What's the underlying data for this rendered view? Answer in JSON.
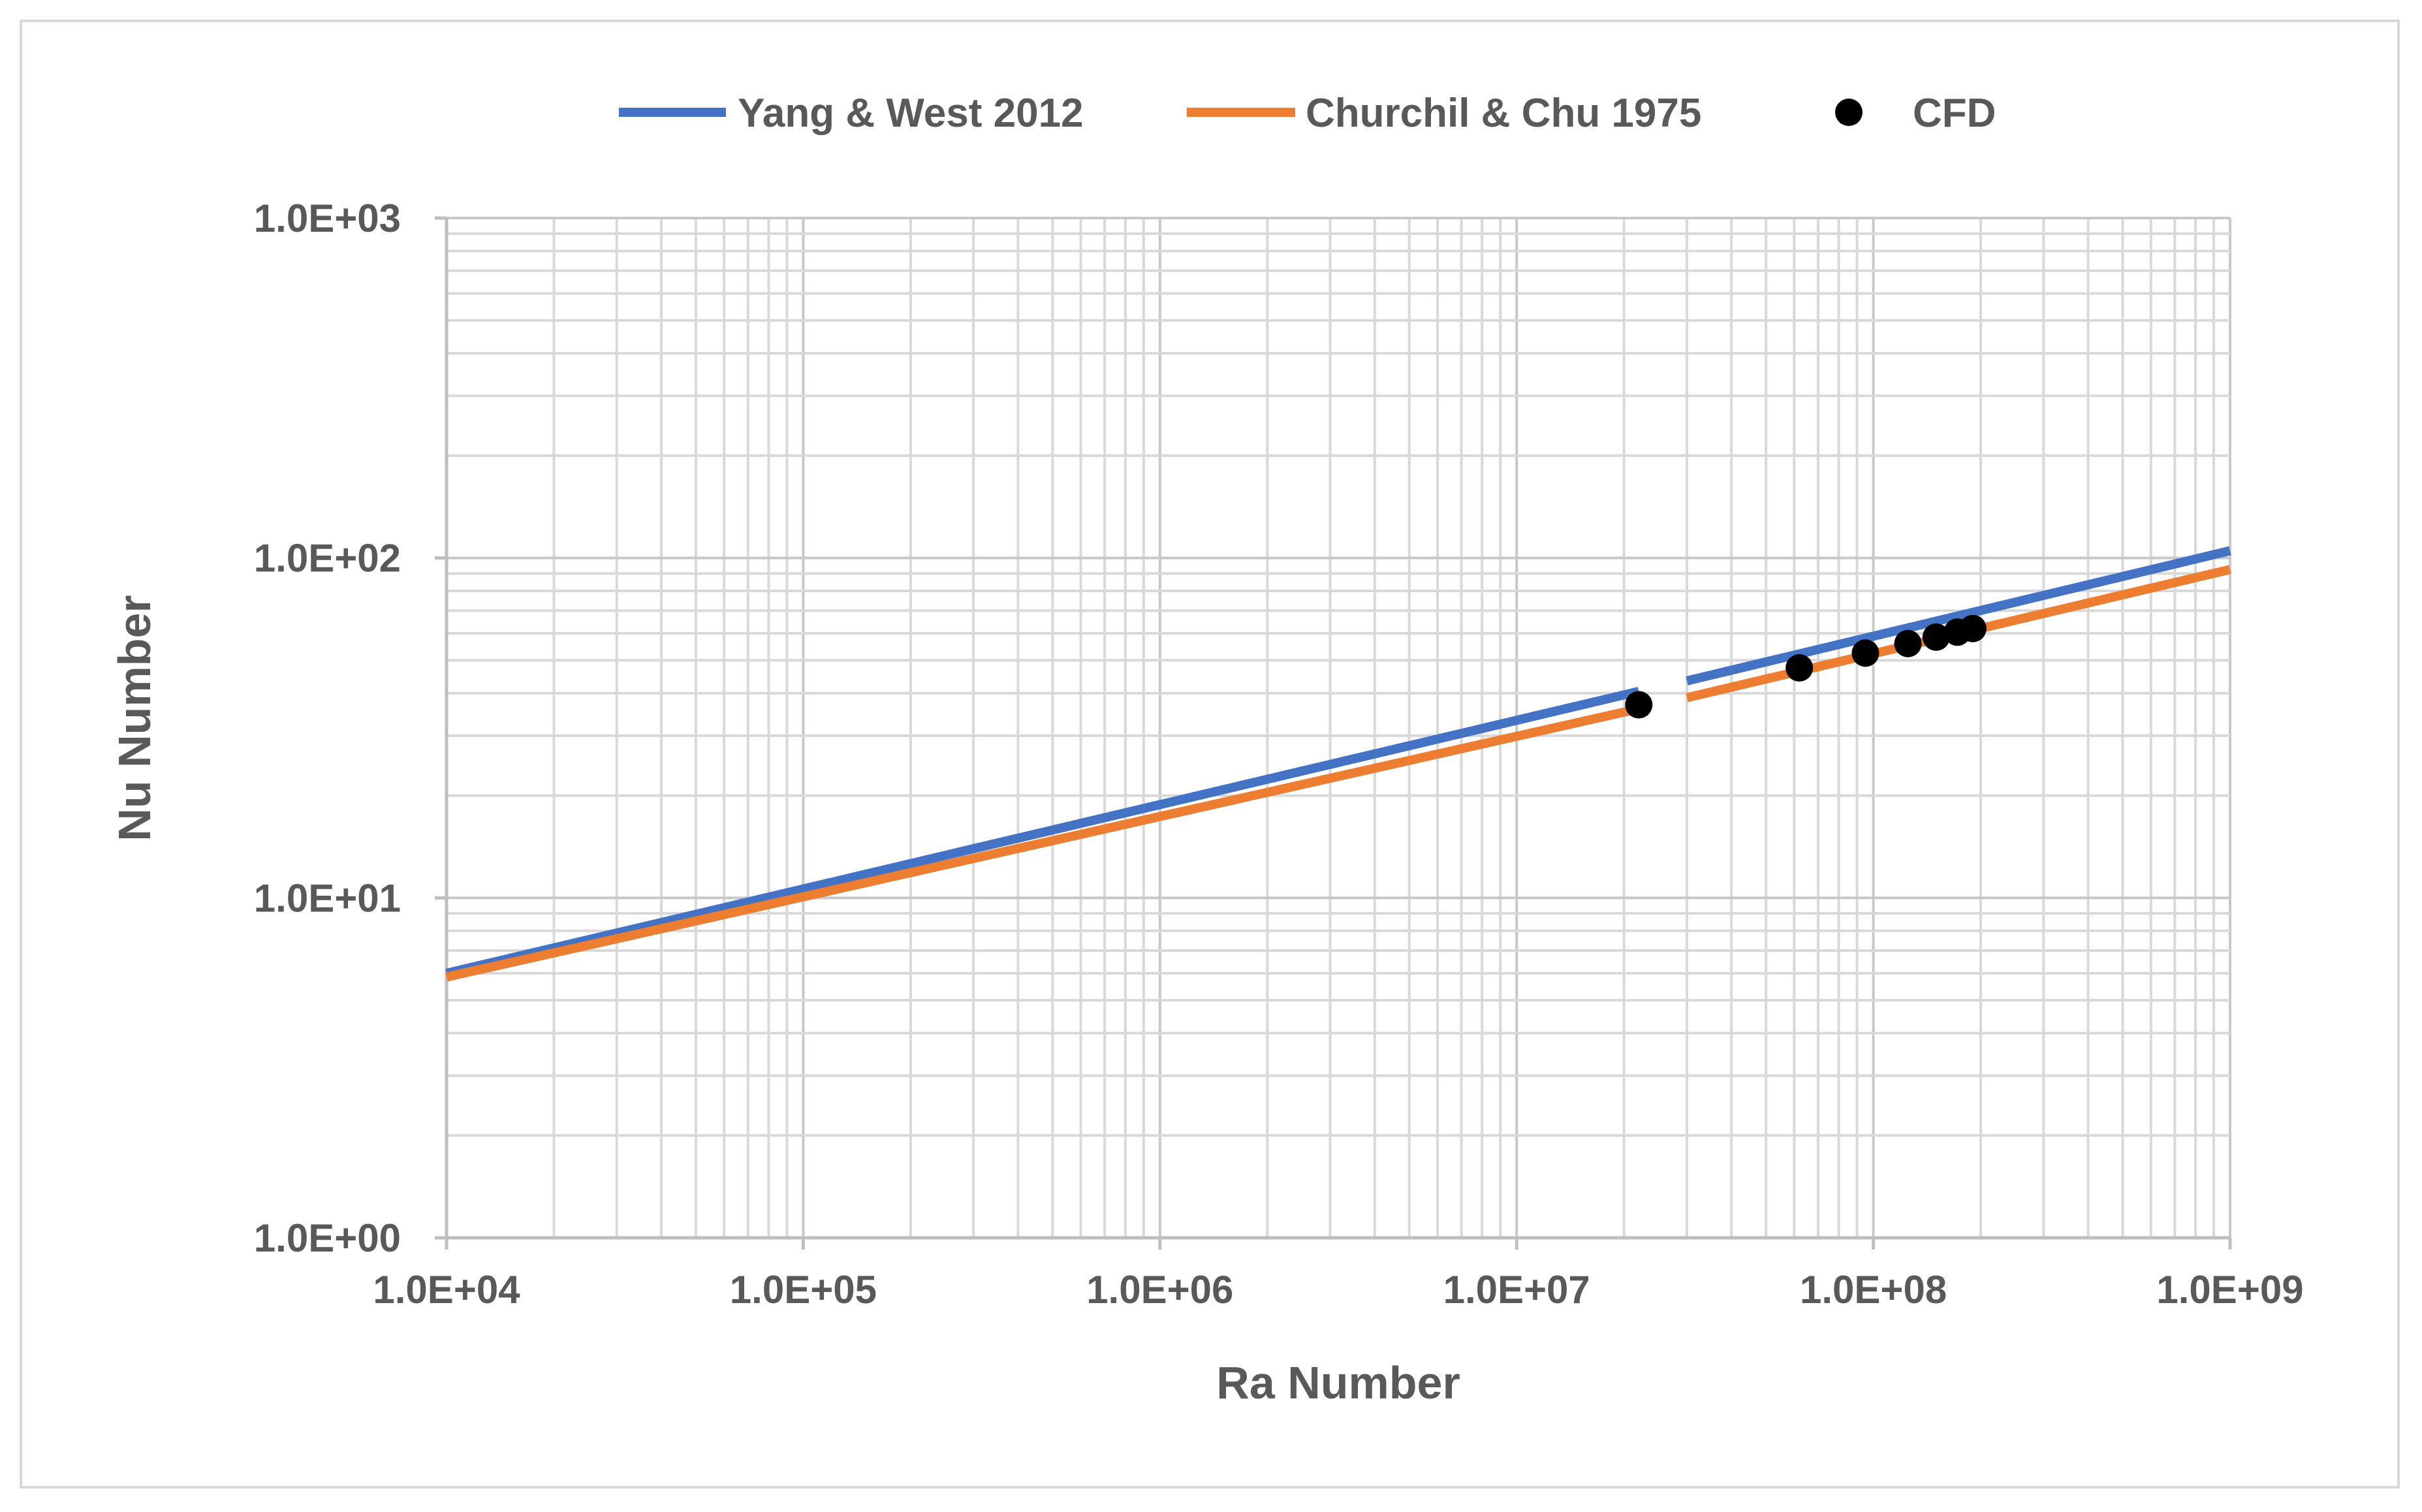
{
  "chart_data": {
    "type": "line",
    "x_scale": "log",
    "y_scale": "log",
    "xlabel": "Ra Number",
    "ylabel": "Nu Number",
    "xlim": [
      10000,
      1000000000
    ],
    "ylim": [
      1,
      1000
    ],
    "grid": true,
    "legend_position": "top",
    "x_tick_labels": [
      "1.0E+04",
      "1.0E+05",
      "1.0E+06",
      "1.0E+07",
      "1.0E+08",
      "1.0E+09"
    ],
    "y_tick_labels": [
      "1.0E+00",
      "1.0E+01",
      "1.0E+02",
      "1.0E+03"
    ],
    "series": [
      {
        "name": "Yang & West  2012",
        "kind": "line",
        "color": "#4472c4",
        "segments": [
          [
            [
              10000,
              6.0
            ],
            [
              22000000,
              40.5
            ]
          ],
          [
            [
              30000000,
              43.5
            ],
            [
              1000000000,
              105
            ]
          ]
        ]
      },
      {
        "name": "Churchil & Chu  1975",
        "kind": "line",
        "color": "#ed7d31",
        "segments": [
          [
            [
              10000,
              5.85
            ],
            [
              22000000,
              36.0
            ]
          ],
          [
            [
              30000000,
              38.8
            ],
            [
              1000000000,
              92.5
            ]
          ]
        ]
      },
      {
        "name": "CFD",
        "kind": "scatter",
        "color": "#000000",
        "points": [
          [
            22000000,
            37.0
          ],
          [
            62000000,
            47.5
          ],
          [
            95000000,
            52.5
          ],
          [
            125000000,
            56.0
          ],
          [
            150000000,
            58.5
          ],
          [
            172000000,
            60.5
          ],
          [
            190000000,
            62.0
          ]
        ]
      }
    ]
  }
}
